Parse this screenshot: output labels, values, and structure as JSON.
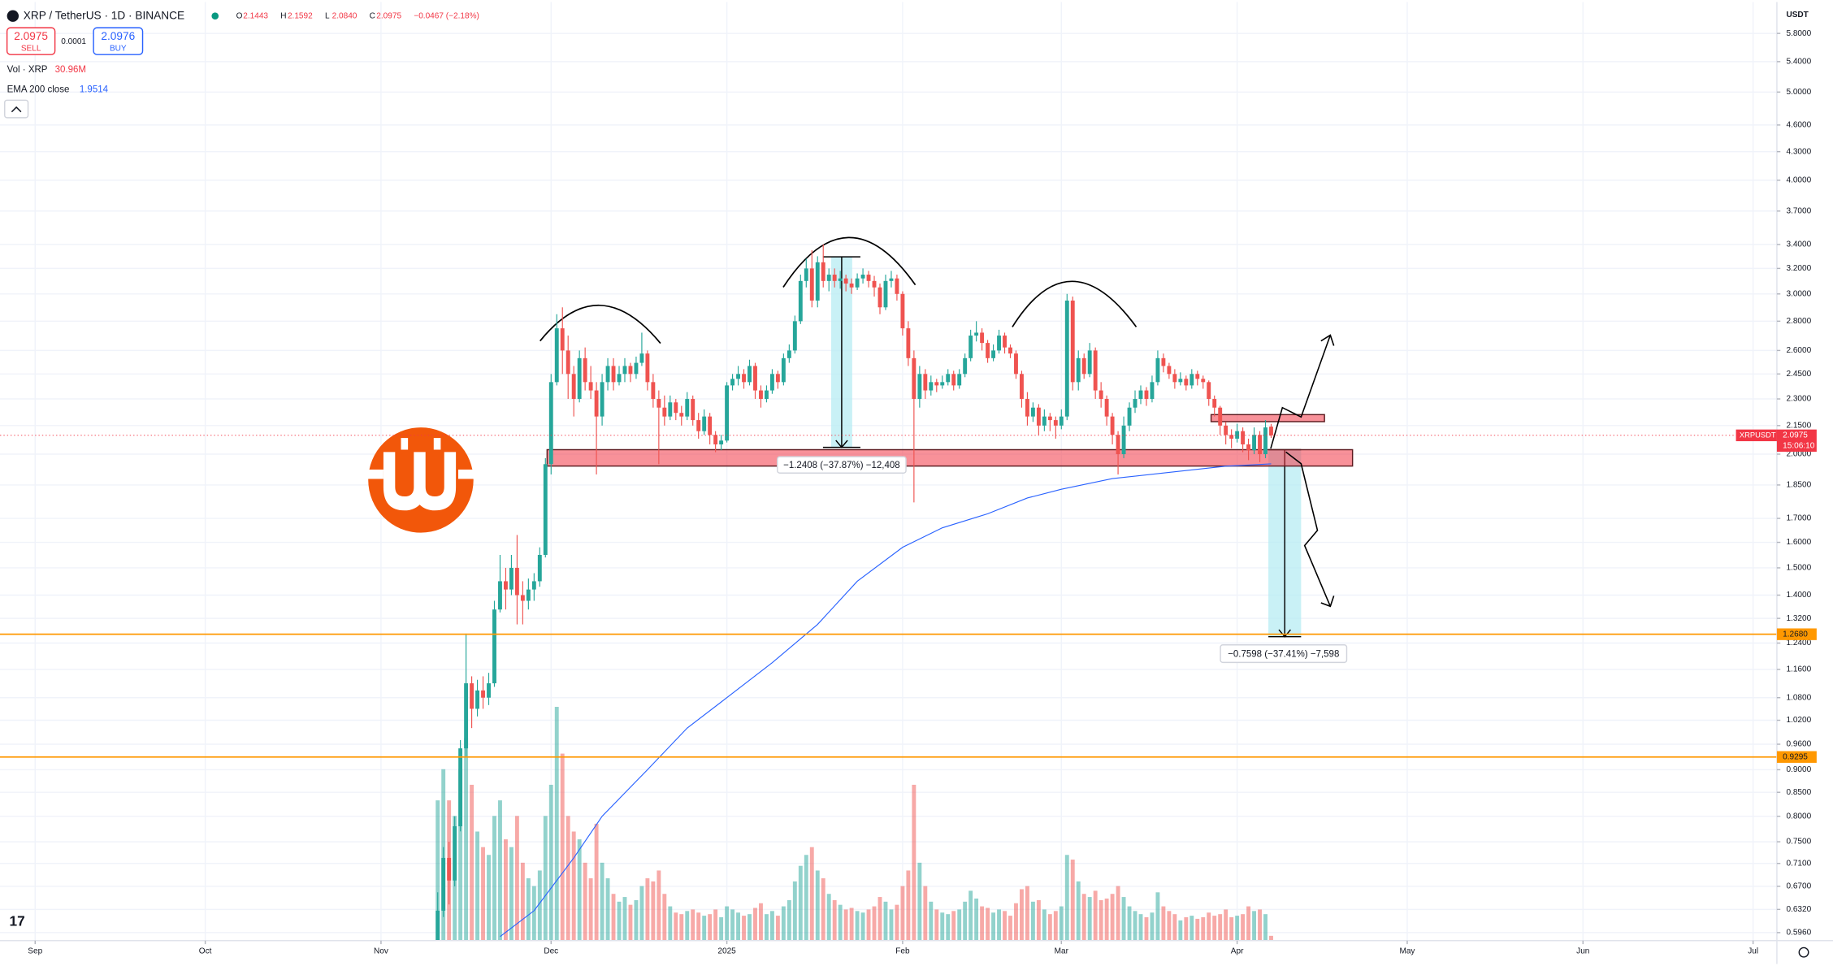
{
  "header": {
    "symbol": "XRP / TetherUS · 1D · BINANCE",
    "ohlc_labels": [
      "O",
      "H",
      "L",
      "C"
    ],
    "ohlc_values": [
      "2.1443",
      "2.1592",
      "2.0840",
      "2.0975"
    ],
    "change": "−0.0467 (−2.18%)",
    "sell_price": "2.0975",
    "sell_label": "SELL",
    "spread": "0.0001",
    "buy_price": "2.0976",
    "buy_label": "BUY",
    "volume_label": "Vol · XRP",
    "volume_value": "30.96M",
    "ema_label": "EMA 200 close",
    "ema_value": "1.9514",
    "currency": "USDT",
    "symbol_tag": "XRPUSDT",
    "countdown": "15:06:10"
  },
  "annotations": {
    "measure_1": "−1.2408 (−37.87%) −12,408",
    "measure_2": "−0.7598 (−37.41%) −7,598"
  },
  "chart_data": {
    "type": "candlestick",
    "log_scale": true,
    "grid": true,
    "up_color": "#26a69a",
    "down_color": "#ef5350",
    "ema_color": "#2962ff",
    "level_color": "#ff9800",
    "xlim": [
      -6.2,
      307.2
    ],
    "xticks": [
      {
        "value": 0,
        "label": "Sep"
      },
      {
        "value": 30,
        "label": "Oct"
      },
      {
        "value": 61,
        "label": "Nov"
      },
      {
        "value": 91,
        "label": "Dec"
      },
      {
        "value": 122,
        "label": "2025"
      },
      {
        "value": 153,
        "label": "Feb"
      },
      {
        "value": 181,
        "label": "Mar"
      },
      {
        "value": 212,
        "label": "Apr"
      },
      {
        "value": 242,
        "label": "May"
      },
      {
        "value": 273,
        "label": "Jun"
      },
      {
        "value": 303,
        "label": "Jul"
      }
    ],
    "ylim": [
      0.584,
      6.28
    ],
    "yticks": [
      {
        "value": 5.8,
        "label": "5.8000"
      },
      {
        "value": 5.4,
        "label": "5.4000"
      },
      {
        "value": 5,
        "label": "5.0000"
      },
      {
        "value": 4.6,
        "label": "4.6000"
      },
      {
        "value": 4.3,
        "label": "4.3000"
      },
      {
        "value": 4,
        "label": "4.0000"
      },
      {
        "value": 3.7,
        "label": "3.7000"
      },
      {
        "value": 3.4,
        "label": "3.4000"
      },
      {
        "value": 3.2,
        "label": "3.2000"
      },
      {
        "value": 3,
        "label": "3.0000"
      },
      {
        "value": 2.8,
        "label": "2.8000"
      },
      {
        "value": 2.6,
        "label": "2.6000"
      },
      {
        "value": 2.45,
        "label": "2.4500"
      },
      {
        "value": 2.3,
        "label": "2.3000"
      },
      {
        "value": 2.15,
        "label": "2.1500"
      },
      {
        "value": 2,
        "label": "2.0000"
      },
      {
        "value": 1.85,
        "label": "1.8500"
      },
      {
        "value": 1.7,
        "label": "1.7000"
      },
      {
        "value": 1.6,
        "label": "1.6000"
      },
      {
        "value": 1.5,
        "label": "1.5000"
      },
      {
        "value": 1.4,
        "label": "1.4000"
      },
      {
        "value": 1.32,
        "label": "1.3200"
      },
      {
        "value": 1.24,
        "label": "1.2400"
      },
      {
        "value": 1.16,
        "label": "1.1600"
      },
      {
        "value": 1.08,
        "label": "1.0800"
      },
      {
        "value": 1.02,
        "label": "1.0200"
      },
      {
        "value": 0.96,
        "label": "0.9600"
      },
      {
        "value": 0.9,
        "label": "0.9000"
      },
      {
        "value": 0.85,
        "label": "0.8500"
      },
      {
        "value": 0.8,
        "label": "0.8000"
      },
      {
        "value": 0.75,
        "label": "0.7500"
      },
      {
        "value": 0.71,
        "label": "0.7100"
      },
      {
        "value": 0.67,
        "label": "0.6700"
      },
      {
        "value": 0.632,
        "label": "0.6320"
      },
      {
        "value": 0.596,
        "label": "0.5960"
      }
    ],
    "levels": [
      {
        "value": 1.268,
        "label": "1.2680"
      },
      {
        "value": 0.9295,
        "label": "0.9295"
      }
    ],
    "last_price": 2.0975,
    "candles": [
      [
        71,
        0.56,
        0.66,
        0.55,
        0.63,
        900
      ],
      [
        72,
        0.63,
        0.74,
        0.62,
        0.72,
        1100
      ],
      [
        73,
        0.72,
        0.75,
        0.64,
        0.68,
        900
      ],
      [
        74,
        0.68,
        0.8,
        0.67,
        0.78,
        800
      ],
      [
        75,
        0.78,
        0.97,
        0.77,
        0.95,
        1100
      ],
      [
        76,
        0.95,
        1.27,
        0.93,
        1.12,
        1300
      ],
      [
        77,
        1.12,
        1.14,
        1.0,
        1.05,
        1000
      ],
      [
        78,
        1.05,
        1.13,
        1.03,
        1.1,
        700
      ],
      [
        79,
        1.1,
        1.14,
        1.05,
        1.08,
        600
      ],
      [
        80,
        1.08,
        1.15,
        1.06,
        1.12,
        550
      ],
      [
        81,
        1.12,
        1.38,
        1.11,
        1.35,
        800
      ],
      [
        82,
        1.35,
        1.55,
        1.34,
        1.45,
        900
      ],
      [
        83,
        1.45,
        1.5,
        1.35,
        1.42,
        650
      ],
      [
        84,
        1.42,
        1.55,
        1.4,
        1.5,
        600
      ],
      [
        85,
        1.5,
        1.63,
        1.3,
        1.4,
        800
      ],
      [
        86,
        1.4,
        1.45,
        1.3,
        1.38,
        500
      ],
      [
        87,
        1.38,
        1.46,
        1.35,
        1.42,
        400
      ],
      [
        88,
        1.42,
        1.48,
        1.38,
        1.45,
        350
      ],
      [
        89,
        1.45,
        1.58,
        1.43,
        1.55,
        450
      ],
      [
        90,
        1.55,
        1.98,
        1.54,
        1.95,
        800
      ],
      [
        91,
        1.95,
        2.45,
        1.9,
        2.4,
        1000
      ],
      [
        92,
        2.4,
        2.85,
        2.38,
        2.75,
        1500
      ],
      [
        93,
        2.75,
        2.9,
        2.45,
        2.6,
        1200
      ],
      [
        94,
        2.6,
        2.7,
        2.3,
        2.45,
        800
      ],
      [
        95,
        2.45,
        2.5,
        2.2,
        2.3,
        700
      ],
      [
        96,
        2.3,
        2.6,
        2.28,
        2.55,
        650
      ],
      [
        97,
        2.55,
        2.62,
        2.35,
        2.4,
        500
      ],
      [
        98,
        2.4,
        2.5,
        2.3,
        2.35,
        400
      ],
      [
        99,
        2.35,
        2.4,
        1.9,
        2.2,
        750
      ],
      [
        100,
        2.2,
        2.45,
        2.15,
        2.4,
        500
      ],
      [
        101,
        2.4,
        2.55,
        2.35,
        2.5,
        400
      ],
      [
        102,
        2.5,
        2.55,
        2.35,
        2.4,
        300
      ],
      [
        103,
        2.4,
        2.5,
        2.38,
        2.45,
        250
      ],
      [
        104,
        2.45,
        2.55,
        2.4,
        2.5,
        280
      ],
      [
        105,
        2.5,
        2.52,
        2.4,
        2.45,
        230
      ],
      [
        106,
        2.45,
        2.56,
        2.42,
        2.52,
        260
      ],
      [
        107,
        2.52,
        2.72,
        2.5,
        2.58,
        350
      ],
      [
        108,
        2.58,
        2.6,
        2.35,
        2.4,
        400
      ],
      [
        109,
        2.4,
        2.45,
        2.25,
        2.3,
        380
      ],
      [
        110,
        2.3,
        2.35,
        1.95,
        2.25,
        450
      ],
      [
        111,
        2.25,
        2.32,
        2.15,
        2.2,
        300
      ],
      [
        112,
        2.2,
        2.32,
        2.18,
        2.28,
        220
      ],
      [
        113,
        2.28,
        2.3,
        2.18,
        2.22,
        180
      ],
      [
        114,
        2.22,
        2.26,
        2.15,
        2.2,
        170
      ],
      [
        115,
        2.2,
        2.34,
        2.18,
        2.3,
        190
      ],
      [
        116,
        2.3,
        2.32,
        2.15,
        2.18,
        200
      ],
      [
        117,
        2.18,
        2.22,
        2.08,
        2.12,
        180
      ],
      [
        118,
        2.12,
        2.24,
        2.1,
        2.2,
        160
      ],
      [
        119,
        2.2,
        2.22,
        2.05,
        2.1,
        170
      ],
      [
        120,
        2.1,
        2.12,
        2.01,
        2.05,
        200
      ],
      [
        121,
        2.05,
        2.1,
        2.02,
        2.07,
        150
      ],
      [
        122,
        2.07,
        2.4,
        2.06,
        2.38,
        220
      ],
      [
        123,
        2.38,
        2.45,
        2.35,
        2.42,
        200
      ],
      [
        124,
        2.42,
        2.5,
        2.38,
        2.45,
        180
      ],
      [
        125,
        2.45,
        2.48,
        2.36,
        2.4,
        160
      ],
      [
        126,
        2.4,
        2.54,
        2.38,
        2.5,
        170
      ],
      [
        127,
        2.5,
        2.52,
        2.3,
        2.35,
        210
      ],
      [
        128,
        2.35,
        2.38,
        2.25,
        2.3,
        240
      ],
      [
        129,
        2.3,
        2.38,
        2.28,
        2.35,
        170
      ],
      [
        130,
        2.35,
        2.48,
        2.33,
        2.45,
        190
      ],
      [
        131,
        2.45,
        2.47,
        2.36,
        2.4,
        160
      ],
      [
        132,
        2.4,
        2.58,
        2.38,
        2.55,
        220
      ],
      [
        133,
        2.55,
        2.64,
        2.52,
        2.6,
        260
      ],
      [
        134,
        2.6,
        2.84,
        2.58,
        2.8,
        380
      ],
      [
        135,
        2.8,
        3.15,
        2.78,
        3.1,
        480
      ],
      [
        136,
        3.1,
        3.28,
        3.05,
        3.2,
        550
      ],
      [
        137,
        3.2,
        3.35,
        2.9,
        2.95,
        600
      ],
      [
        138,
        2.95,
        3.3,
        2.9,
        3.25,
        450
      ],
      [
        139,
        3.25,
        3.4,
        3.05,
        3.1,
        400
      ],
      [
        140,
        3.1,
        3.2,
        3.02,
        3.15,
        300
      ],
      [
        141,
        3.15,
        3.2,
        3.05,
        3.1,
        260
      ],
      [
        142,
        3.1,
        3.18,
        3.04,
        3.12,
        230
      ],
      [
        143,
        3.12,
        3.15,
        3.02,
        3.08,
        200
      ],
      [
        144,
        3.08,
        3.12,
        3.0,
        3.05,
        210
      ],
      [
        145,
        3.05,
        3.16,
        3.03,
        3.12,
        190
      ],
      [
        146,
        3.12,
        3.2,
        3.08,
        3.15,
        180
      ],
      [
        147,
        3.15,
        3.18,
        3.05,
        3.1,
        200
      ],
      [
        148,
        3.1,
        3.14,
        2.98,
        3.05,
        220
      ],
      [
        149,
        3.05,
        3.08,
        2.85,
        2.9,
        280
      ],
      [
        150,
        2.9,
        3.15,
        2.88,
        3.1,
        250
      ],
      [
        151,
        3.1,
        3.18,
        3.05,
        3.12,
        200
      ],
      [
        152,
        3.12,
        3.15,
        2.95,
        3.0,
        230
      ],
      [
        153,
        3.0,
        3.02,
        2.7,
        2.75,
        350
      ],
      [
        154,
        2.75,
        2.8,
        2.5,
        2.55,
        450
      ],
      [
        155,
        2.55,
        2.6,
        1.77,
        2.3,
        1000
      ],
      [
        156,
        2.3,
        2.5,
        2.25,
        2.45,
        500
      ],
      [
        157,
        2.45,
        2.48,
        2.3,
        2.35,
        350
      ],
      [
        158,
        2.35,
        2.44,
        2.32,
        2.4,
        250
      ],
      [
        159,
        2.4,
        2.42,
        2.34,
        2.38,
        200
      ],
      [
        160,
        2.38,
        2.44,
        2.36,
        2.4,
        180
      ],
      [
        161,
        2.4,
        2.48,
        2.38,
        2.45,
        170
      ],
      [
        162,
        2.45,
        2.47,
        2.35,
        2.38,
        190
      ],
      [
        163,
        2.38,
        2.48,
        2.36,
        2.45,
        200
      ],
      [
        164,
        2.45,
        2.58,
        2.43,
        2.55,
        250
      ],
      [
        165,
        2.55,
        2.74,
        2.53,
        2.7,
        320
      ],
      [
        166,
        2.7,
        2.8,
        2.66,
        2.72,
        270
      ],
      [
        167,
        2.72,
        2.75,
        2.6,
        2.65,
        220
      ],
      [
        168,
        2.65,
        2.67,
        2.52,
        2.55,
        210
      ],
      [
        169,
        2.55,
        2.64,
        2.53,
        2.6,
        180
      ],
      [
        170,
        2.6,
        2.74,
        2.58,
        2.7,
        200
      ],
      [
        171,
        2.7,
        2.72,
        2.58,
        2.62,
        190
      ],
      [
        172,
        2.62,
        2.64,
        2.55,
        2.58,
        160
      ],
      [
        173,
        2.58,
        2.6,
        2.42,
        2.45,
        240
      ],
      [
        174,
        2.45,
        2.47,
        2.25,
        2.3,
        330
      ],
      [
        175,
        2.3,
        2.34,
        2.15,
        2.2,
        350
      ],
      [
        176,
        2.2,
        2.28,
        2.17,
        2.25,
        250
      ],
      [
        177,
        2.25,
        2.27,
        2.1,
        2.15,
        260
      ],
      [
        178,
        2.15,
        2.24,
        2.12,
        2.2,
        200
      ],
      [
        179,
        2.2,
        2.22,
        2.12,
        2.18,
        170
      ],
      [
        180,
        2.18,
        2.2,
        2.08,
        2.15,
        190
      ],
      [
        181,
        2.15,
        2.24,
        2.13,
        2.2,
        220
      ],
      [
        182,
        2.2,
        3.0,
        2.18,
        2.95,
        550
      ],
      [
        183,
        2.95,
        2.98,
        2.35,
        2.4,
        520
      ],
      [
        184,
        2.4,
        2.6,
        2.35,
        2.55,
        380
      ],
      [
        185,
        2.55,
        2.58,
        2.42,
        2.45,
        300
      ],
      [
        186,
        2.45,
        2.65,
        2.43,
        2.6,
        280
      ],
      [
        187,
        2.6,
        2.62,
        2.3,
        2.35,
        320
      ],
      [
        188,
        2.35,
        2.4,
        2.25,
        2.3,
        260
      ],
      [
        189,
        2.3,
        2.32,
        2.15,
        2.2,
        270
      ],
      [
        190,
        2.2,
        2.22,
        2.05,
        2.1,
        300
      ],
      [
        191,
        2.1,
        2.12,
        1.9,
        2.0,
        350
      ],
      [
        192,
        2.0,
        2.2,
        1.98,
        2.15,
        280
      ],
      [
        193,
        2.15,
        2.28,
        2.12,
        2.25,
        220
      ],
      [
        194,
        2.25,
        2.35,
        2.22,
        2.3,
        190
      ],
      [
        195,
        2.3,
        2.38,
        2.27,
        2.35,
        170
      ],
      [
        196,
        2.35,
        2.37,
        2.26,
        2.3,
        150
      ],
      [
        197,
        2.3,
        2.44,
        2.28,
        2.4,
        180
      ],
      [
        198,
        2.4,
        2.6,
        2.38,
        2.55,
        310
      ],
      [
        199,
        2.55,
        2.58,
        2.46,
        2.5,
        220
      ],
      [
        200,
        2.5,
        2.52,
        2.42,
        2.45,
        190
      ],
      [
        201,
        2.45,
        2.48,
        2.36,
        2.4,
        170
      ],
      [
        202,
        2.4,
        2.46,
        2.38,
        2.42,
        130
      ],
      [
        203,
        2.42,
        2.44,
        2.35,
        2.38,
        150
      ],
      [
        204,
        2.38,
        2.48,
        2.36,
        2.45,
        160
      ],
      [
        205,
        2.45,
        2.47,
        2.38,
        2.42,
        140
      ],
      [
        206,
        2.42,
        2.44,
        2.36,
        2.4,
        150
      ],
      [
        207,
        2.4,
        2.41,
        2.26,
        2.3,
        180
      ],
      [
        208,
        2.3,
        2.32,
        2.2,
        2.25,
        160
      ],
      [
        209,
        2.25,
        2.26,
        2.1,
        2.15,
        170
      ],
      [
        210,
        2.15,
        2.17,
        2.05,
        2.1,
        200
      ],
      [
        211,
        2.1,
        2.13,
        2.03,
        2.08,
        150
      ],
      [
        212,
        2.08,
        2.16,
        2.06,
        2.12,
        160
      ],
      [
        213,
        2.12,
        2.14,
        2.01,
        2.05,
        170
      ],
      [
        214,
        2.05,
        2.08,
        1.97,
        2.02,
        220
      ],
      [
        215,
        2.02,
        2.14,
        2.0,
        2.1,
        190
      ],
      [
        216,
        2.1,
        2.12,
        1.96,
        2.0,
        200
      ],
      [
        217,
        2.0,
        2.18,
        1.98,
        2.14,
        170
      ],
      [
        218,
        2.1443,
        2.1592,
        2.084,
        2.0975,
        30.96
      ]
    ],
    "ema": {
      "x": [
        82,
        88,
        95,
        100,
        108,
        115,
        122,
        130,
        138,
        145,
        153,
        160,
        168,
        175,
        181,
        190,
        200,
        210,
        218
      ],
      "values": [
        0.59,
        0.63,
        0.72,
        0.8,
        0.9,
        1.0,
        1.08,
        1.18,
        1.3,
        1.45,
        1.58,
        1.66,
        1.72,
        1.79,
        1.83,
        1.88,
        1.91,
        1.94,
        1.9514
      ]
    }
  }
}
